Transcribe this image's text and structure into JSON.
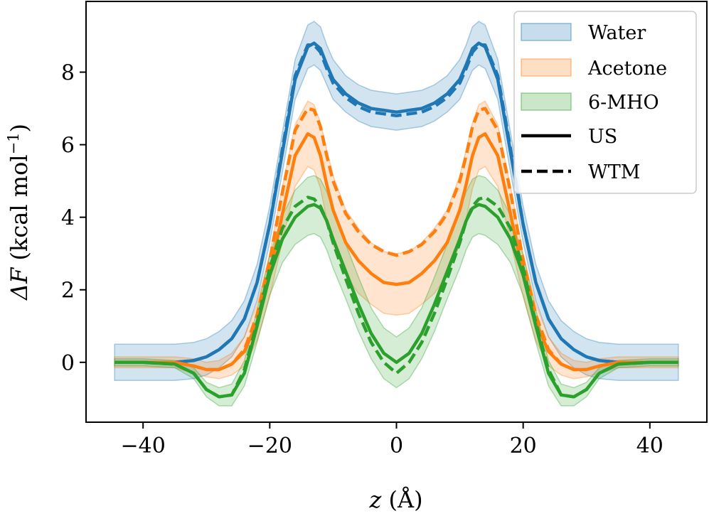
{
  "chart_data": {
    "type": "line",
    "title": "",
    "xlabel": "z (Å)",
    "xlabel_var": "z",
    "xlabel_unit": " (Å)",
    "ylabel_var": "ΔF",
    "ylabel_unit": " (kcal mol",
    "ylabel_exp": "−1",
    "ylabel_close": ")",
    "xlim": [
      -49,
      49
    ],
    "ylim": [
      -1.65,
      9.95
    ],
    "xticks": [
      -40,
      -20,
      0,
      20,
      40
    ],
    "xtick_labels": [
      "−40",
      "−20",
      "0",
      "20",
      "40"
    ],
    "yticks": [
      0,
      2,
      4,
      6,
      8
    ],
    "ytick_labels": [
      "0",
      "2",
      "4",
      "6",
      "8"
    ],
    "legend_location": "top-right",
    "legend": [
      {
        "label": "Water",
        "kind": "band",
        "color": "#1f77b4"
      },
      {
        "label": "Acetone",
        "kind": "band",
        "color": "#ff7f0e"
      },
      {
        "label": "6-MHO",
        "kind": "band",
        "color": "#2ca02c"
      },
      {
        "label": "US",
        "kind": "solid",
        "color": "#000000"
      },
      {
        "label": "WTM",
        "kind": "dashed",
        "color": "#000000"
      }
    ],
    "x": [
      -44.5,
      -40,
      -35,
      -32,
      -30,
      -28,
      -26,
      -24,
      -22,
      -20,
      -18,
      -16,
      -14,
      -13,
      -12,
      -11,
      -10,
      -8,
      -6,
      -4,
      -2,
      0,
      2,
      4,
      6,
      8,
      10,
      11,
      12,
      13,
      14,
      16,
      18,
      20,
      22,
      24,
      26,
      28,
      30,
      32,
      35,
      40,
      44.5
    ],
    "series": [
      {
        "name": "Water US",
        "system": "Water",
        "method": "US",
        "color": "#1f77b4",
        "values": [
          0,
          0,
          0,
          0.05,
          0.15,
          0.35,
          0.65,
          1.2,
          2.2,
          3.8,
          5.8,
          7.8,
          8.7,
          8.8,
          8.65,
          8.2,
          7.8,
          7.4,
          7.15,
          7.0,
          6.95,
          6.9,
          6.95,
          7.0,
          7.15,
          7.4,
          7.8,
          8.2,
          8.65,
          8.8,
          8.7,
          7.8,
          5.8,
          3.8,
          2.2,
          1.2,
          0.65,
          0.35,
          0.15,
          0.05,
          0,
          0,
          0
        ],
        "band": [
          0.5,
          0.5,
          0.5,
          0.5,
          0.5,
          0.5,
          0.5,
          0.5,
          0.5,
          0.5,
          0.55,
          0.55,
          0.6,
          0.6,
          0.6,
          0.55,
          0.55,
          0.5,
          0.5,
          0.5,
          0.5,
          0.5,
          0.5,
          0.5,
          0.5,
          0.5,
          0.55,
          0.55,
          0.6,
          0.6,
          0.6,
          0.55,
          0.55,
          0.5,
          0.5,
          0.5,
          0.5,
          0.5,
          0.5,
          0.5,
          0.5,
          0.5,
          0.5
        ]
      },
      {
        "name": "Water WTM",
        "system": "Water",
        "method": "WTM",
        "color": "#1f77b4",
        "values": [
          0,
          0,
          0,
          0.05,
          0.15,
          0.35,
          0.65,
          1.2,
          2.2,
          3.8,
          5.9,
          7.9,
          8.75,
          8.75,
          8.55,
          8.1,
          7.7,
          7.3,
          7.05,
          6.9,
          6.85,
          6.8,
          6.85,
          6.9,
          7.05,
          7.3,
          7.7,
          8.1,
          8.55,
          8.75,
          8.75,
          7.9,
          5.9,
          3.8,
          2.2,
          1.2,
          0.65,
          0.35,
          0.15,
          0.05,
          0,
          0,
          0
        ]
      },
      {
        "name": "Acetone US",
        "system": "Acetone",
        "method": "US",
        "color": "#ff7f0e",
        "values": [
          0,
          0,
          0,
          -0.1,
          -0.2,
          -0.2,
          -0.05,
          0.3,
          1.1,
          2.4,
          4.1,
          5.7,
          6.3,
          6.2,
          5.7,
          4.9,
          4.2,
          3.3,
          2.8,
          2.45,
          2.2,
          2.15,
          2.2,
          2.45,
          2.8,
          3.3,
          4.2,
          4.9,
          5.7,
          6.2,
          6.3,
          5.7,
          4.1,
          2.4,
          1.1,
          0.3,
          -0.05,
          -0.2,
          -0.2,
          -0.1,
          0,
          0,
          0
        ],
        "band": [
          0.15,
          0.15,
          0.15,
          0.2,
          0.2,
          0.25,
          0.3,
          0.4,
          0.5,
          0.6,
          0.75,
          0.85,
          0.9,
          0.9,
          0.9,
          0.95,
          0.95,
          0.9,
          0.9,
          0.85,
          0.85,
          0.85,
          0.85,
          0.85,
          0.9,
          0.9,
          0.95,
          0.95,
          0.9,
          0.9,
          0.9,
          0.85,
          0.75,
          0.6,
          0.5,
          0.4,
          0.3,
          0.25,
          0.2,
          0.2,
          0.15,
          0.15,
          0.15
        ]
      },
      {
        "name": "Acetone WTM",
        "system": "Acetone",
        "method": "WTM",
        "color": "#ff7f0e",
        "values": [
          0,
          0,
          0,
          -0.1,
          -0.2,
          -0.2,
          -0.05,
          0.35,
          1.3,
          2.8,
          4.7,
          6.4,
          7.0,
          6.95,
          6.5,
          5.7,
          5.0,
          4.1,
          3.6,
          3.25,
          3.05,
          2.95,
          3.05,
          3.25,
          3.6,
          4.1,
          5.0,
          5.7,
          6.5,
          6.95,
          7.0,
          6.4,
          4.7,
          2.8,
          1.3,
          0.35,
          -0.05,
          -0.2,
          -0.2,
          -0.1,
          0,
          0,
          0
        ]
      },
      {
        "name": "6-MHO US",
        "system": "6-MHO",
        "method": "US",
        "color": "#2ca02c",
        "values": [
          0,
          0,
          -0.05,
          -0.3,
          -0.75,
          -0.95,
          -0.9,
          -0.3,
          1.0,
          2.4,
          3.4,
          4.0,
          4.3,
          4.35,
          4.25,
          3.9,
          3.4,
          2.5,
          1.6,
          0.8,
          0.25,
          0.0,
          0.25,
          0.8,
          1.6,
          2.5,
          3.4,
          3.9,
          4.25,
          4.35,
          4.3,
          4.0,
          3.4,
          2.4,
          1.0,
          -0.3,
          -0.9,
          -0.95,
          -0.75,
          -0.3,
          -0.05,
          0,
          0
        ],
        "band": [
          0.1,
          0.1,
          0.1,
          0.15,
          0.2,
          0.25,
          0.3,
          0.35,
          0.45,
          0.55,
          0.65,
          0.75,
          0.8,
          0.8,
          0.8,
          0.8,
          0.8,
          0.75,
          0.75,
          0.7,
          0.7,
          0.7,
          0.7,
          0.7,
          0.75,
          0.75,
          0.8,
          0.8,
          0.8,
          0.8,
          0.8,
          0.75,
          0.65,
          0.55,
          0.45,
          0.35,
          0.3,
          0.25,
          0.2,
          0.15,
          0.1,
          0.1,
          0.1
        ]
      },
      {
        "name": "6-MHO WTM",
        "system": "6-MHO",
        "method": "WTM",
        "color": "#2ca02c",
        "values": [
          0,
          0,
          -0.05,
          -0.3,
          -0.75,
          -0.95,
          -0.9,
          -0.2,
          1.1,
          2.6,
          3.7,
          4.3,
          4.55,
          4.5,
          4.3,
          3.9,
          3.3,
          2.3,
          1.35,
          0.55,
          0.0,
          -0.3,
          0.0,
          0.55,
          1.35,
          2.3,
          3.3,
          3.9,
          4.3,
          4.5,
          4.55,
          4.3,
          3.7,
          2.6,
          1.1,
          -0.2,
          -0.9,
          -0.95,
          -0.75,
          -0.3,
          -0.05,
          0,
          0
        ]
      }
    ]
  }
}
